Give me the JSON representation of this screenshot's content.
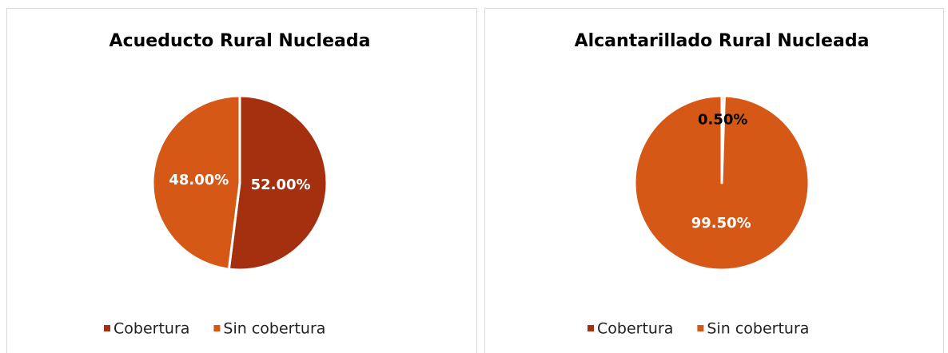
{
  "chart_data": [
    {
      "type": "pie",
      "title": "Acueducto Rural Nucleada",
      "categories": [
        "Cobertura",
        "Sin cobertura"
      ],
      "values": [
        52,
        48
      ],
      "value_labels": [
        "52.00%",
        "48.00%"
      ],
      "colors": [
        "#a5300f",
        "#d55816"
      ],
      "label_colors": [
        "#ffffff",
        "#ffffff"
      ],
      "legend": "bottom"
    },
    {
      "type": "pie",
      "title": "Alcantarillado Rural Nucleada",
      "categories": [
        "Cobertura",
        "Sin cobertura"
      ],
      "values": [
        0.5,
        99.5
      ],
      "value_labels": [
        "0.50%",
        "99.50%"
      ],
      "colors": [
        "#a5300f",
        "#d55816"
      ],
      "label_colors": [
        "#000000",
        "#ffffff"
      ],
      "legend": "bottom"
    }
  ]
}
